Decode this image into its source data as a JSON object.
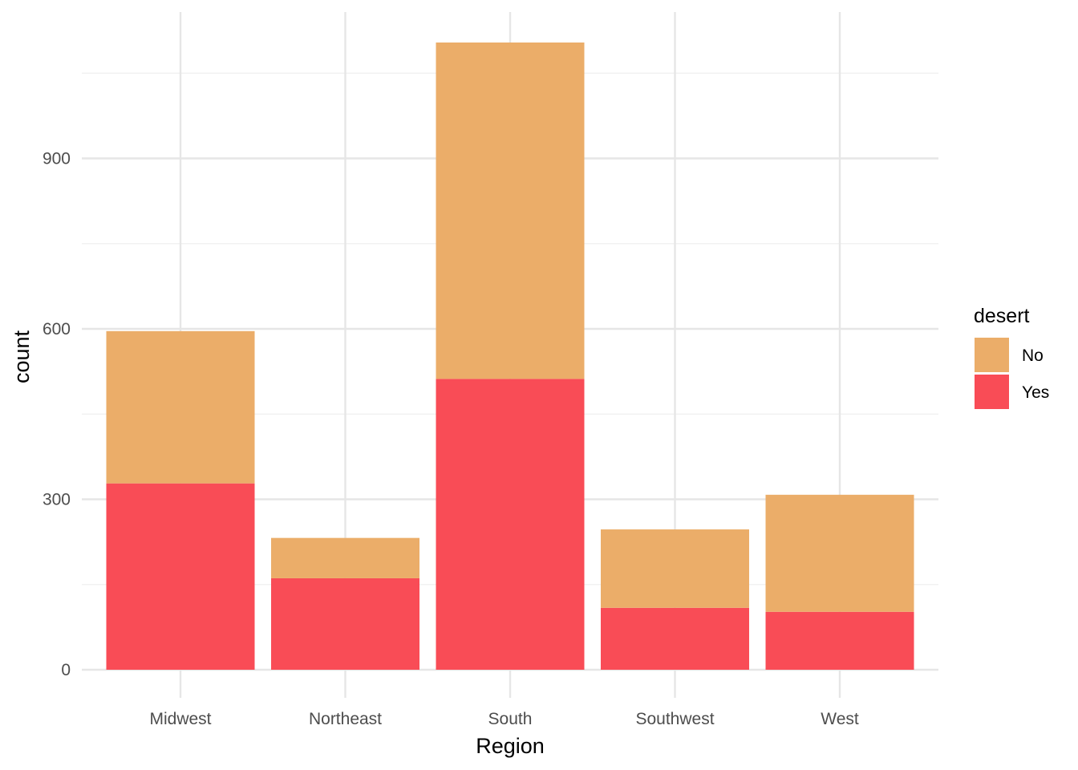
{
  "chart_data": {
    "type": "bar",
    "stacked": true,
    "categories": [
      "Midwest",
      "Northeast",
      "South",
      "Southwest",
      "West"
    ],
    "series": [
      {
        "name": "Yes",
        "color": "#F94C56",
        "values": [
          328,
          161,
          512,
          109,
          102
        ]
      },
      {
        "name": "No",
        "color": "#EBAD69",
        "values": [
          268,
          71,
          592,
          138,
          206
        ]
      }
    ],
    "xlabel": "Region",
    "ylabel": "count",
    "ylim": [
      0,
      1160
    ],
    "yticks": [
      0,
      300,
      600,
      900
    ],
    "legend": {
      "title": "desert",
      "position": "right",
      "order": [
        "No",
        "Yes"
      ]
    },
    "grid": true
  }
}
